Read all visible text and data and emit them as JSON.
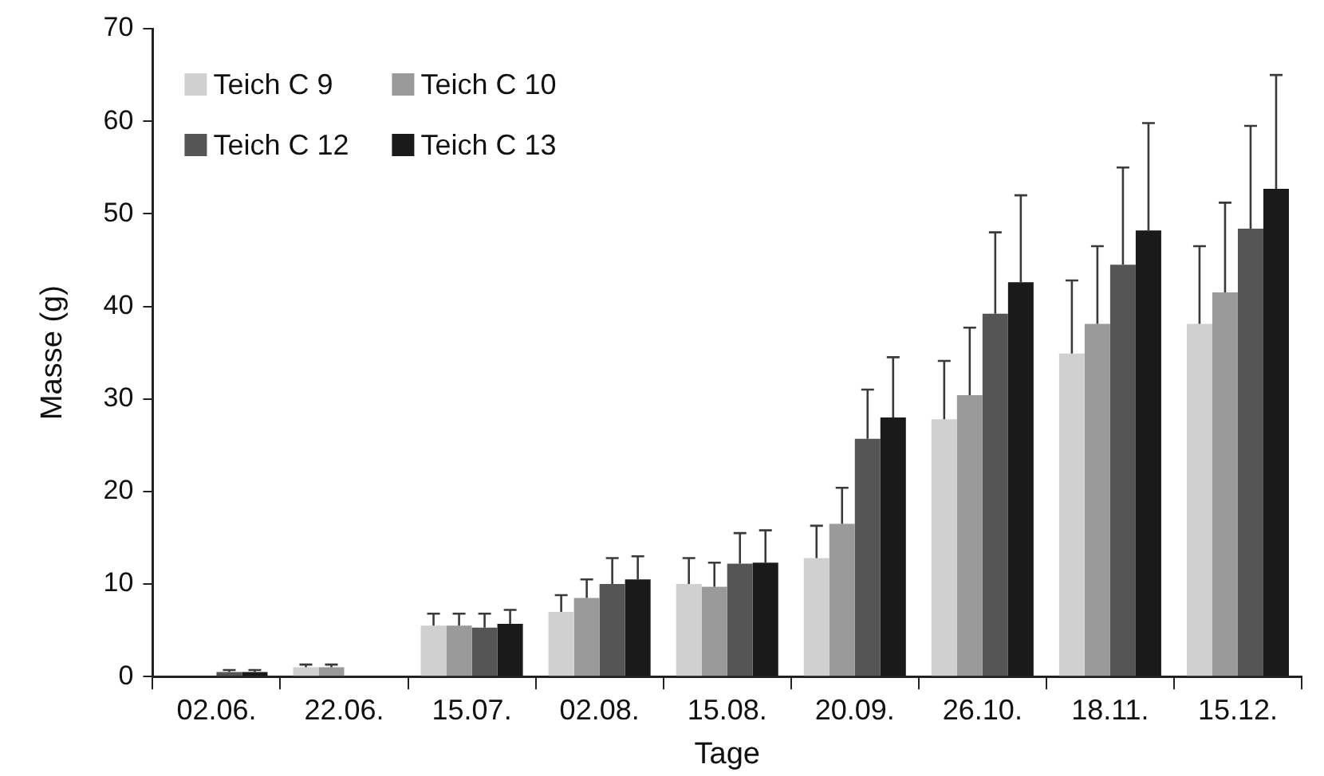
{
  "chart_data": {
    "type": "bar",
    "xlabel": "Tage",
    "ylabel": "Masse (g)",
    "categories": [
      "02.06.",
      "22.06.",
      "15.07.",
      "02.08.",
      "15.08.",
      "20.09.",
      "26.10.",
      "18.11.",
      "15.12."
    ],
    "series": [
      {
        "name": "Teich C 9",
        "color": "#d0d0d0",
        "values": [
          null,
          1,
          5.5,
          7,
          10,
          12.8,
          27.8,
          34.9,
          38.1
        ],
        "errors": [
          null,
          0.3,
          1.3,
          1.8,
          2.8,
          3.5,
          6.3,
          7.9,
          8.4
        ]
      },
      {
        "name": "Teich C 10",
        "color": "#9a9a9a",
        "values": [
          null,
          1,
          5.5,
          8.5,
          9.7,
          16.5,
          30.4,
          38.1,
          41.5
        ],
        "errors": [
          null,
          0.3,
          1.3,
          2,
          2.6,
          3.9,
          7.3,
          8.4,
          9.7
        ]
      },
      {
        "name": "Teich C 12",
        "color": "#555555",
        "values": [
          0.5,
          null,
          5.3,
          10,
          12.2,
          25.7,
          39.2,
          44.5,
          48.4
        ],
        "errors": [
          0.2,
          null,
          1.5,
          2.8,
          3.3,
          5.3,
          8.8,
          10.5,
          11.1
        ]
      },
      {
        "name": "Teich C 13",
        "color": "#1a1a1a",
        "values": [
          0.5,
          null,
          5.7,
          10.5,
          12.3,
          28,
          42.6,
          48.2,
          52.7
        ],
        "errors": [
          0.2,
          null,
          1.5,
          2.5,
          3.5,
          6.5,
          9.4,
          11.6,
          12.3
        ]
      }
    ],
    "ylim": [
      0,
      70
    ],
    "yticks": [
      0,
      10,
      20,
      30,
      40,
      50,
      60,
      70
    ],
    "grid": false,
    "legend": "top left"
  }
}
